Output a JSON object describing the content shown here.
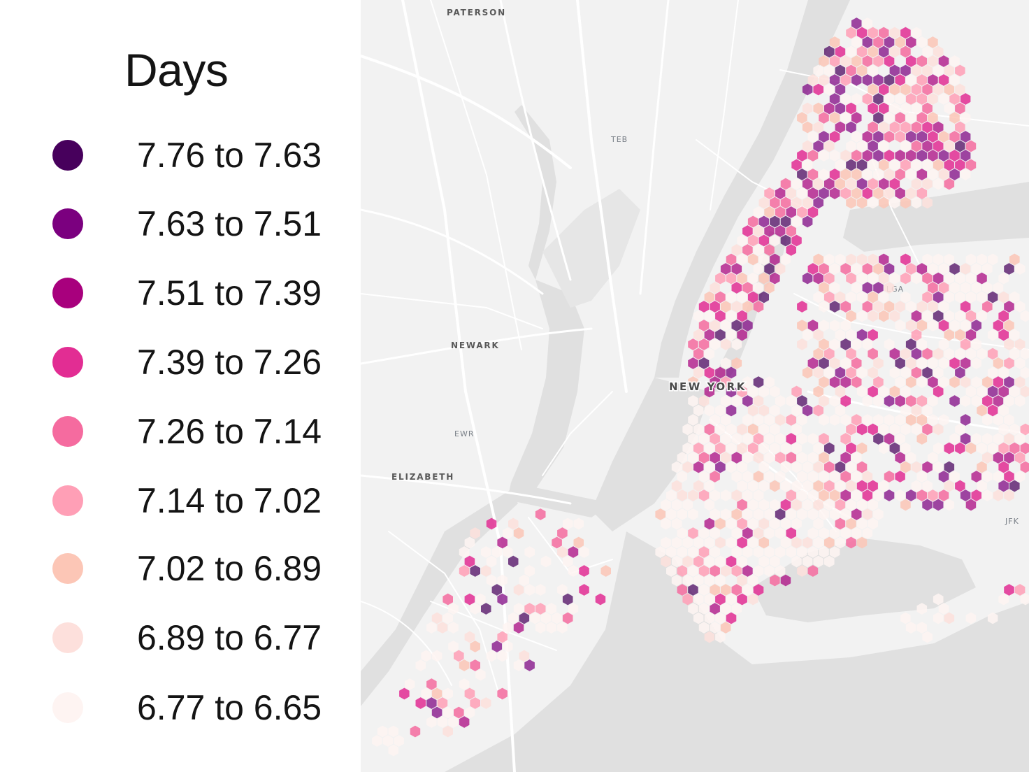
{
  "legend": {
    "title": "Days",
    "items": [
      {
        "label": "7.76 to 7.63",
        "color": "#47005c"
      },
      {
        "label": "7.63 to 7.51",
        "color": "#7b007f"
      },
      {
        "label": "7.51 to 7.39",
        "color": "#a8007d"
      },
      {
        "label": "7.39 to 7.26",
        "color": "#e22d93"
      },
      {
        "label": "7.26 to 7.14",
        "color": "#f56b9f"
      },
      {
        "label": "7.14 to 7.02",
        "color": "#ff9fb6"
      },
      {
        "label": "7.02 to 6.89",
        "color": "#fcc6b6"
      },
      {
        "label": "6.89 to 6.77",
        "color": "#fde0dc"
      },
      {
        "label": "6.77 to 6.65",
        "color": "#fef4f2"
      }
    ]
  },
  "map": {
    "place_labels": {
      "paterson": "PATERSON",
      "newark": "NEWARK",
      "elizabeth": "ELIZABETH",
      "new_york": "NEW YORK"
    },
    "airport_labels": {
      "teb": "TEB",
      "ewr": "EWR",
      "lga": "LGA",
      "jfk": "JFK"
    },
    "colors": {
      "land": "#f2f2f2",
      "water": "#e0e0e0",
      "roads": "#ffffff"
    }
  }
}
